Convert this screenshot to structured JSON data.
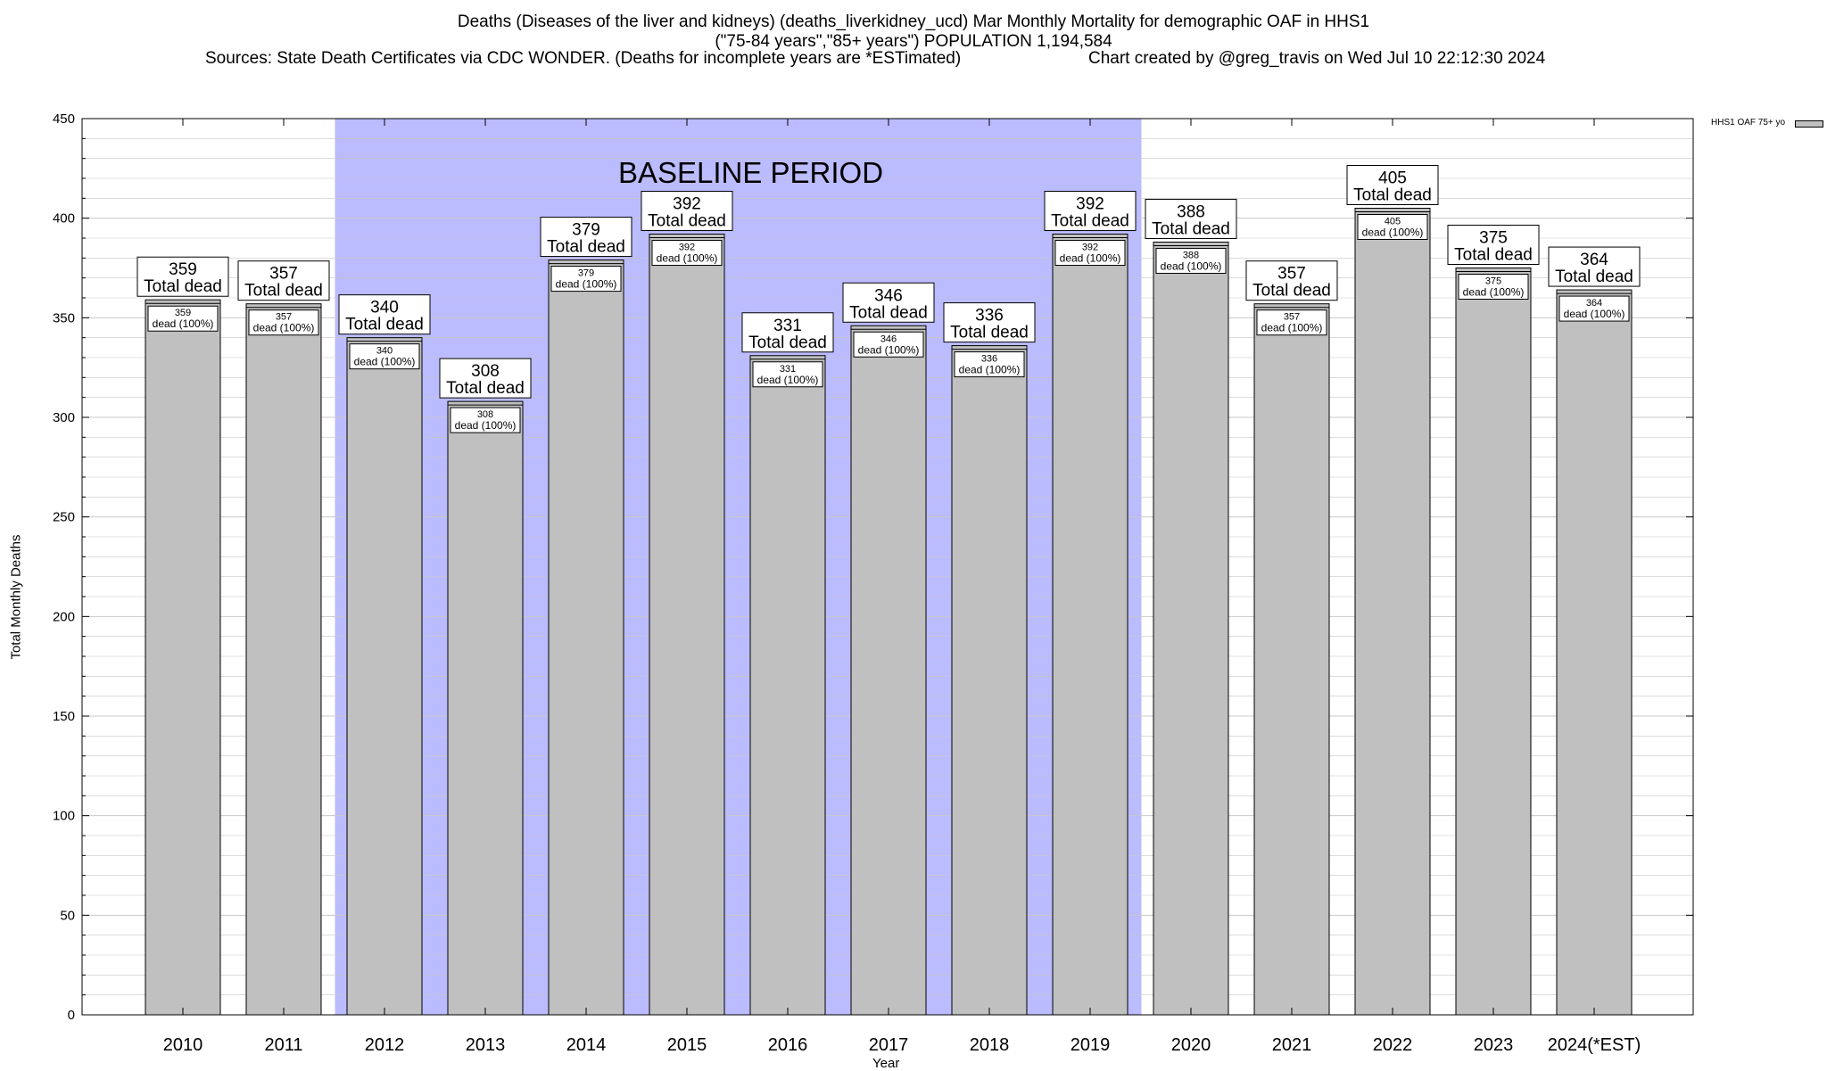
{
  "header": {
    "line1": "Deaths (Diseases of the liver and kidneys) (deaths_liverkidney_ucd) Mar Monthly Mortality for demographic OAF in HHS1",
    "line2": "(\"75-84 years\",\"85+ years\") POPULATION 1,194,584",
    "line3_left": "Sources: State Death Certificates via CDC WONDER. (Deaths for incomplete years are *ESTimated)",
    "line3_right": "Chart created by @greg_travis on Wed Jul 10 22:12:30 2024"
  },
  "legend": {
    "label": "HHS1 OAF 75+ yo"
  },
  "chart_data": {
    "type": "bar",
    "xlabel": "Year",
    "ylabel": "Total Monthly Deaths",
    "ylim": [
      0,
      450
    ],
    "yticks": [
      0,
      50,
      100,
      150,
      200,
      250,
      300,
      350,
      400,
      450
    ],
    "categories": [
      "2010",
      "2011",
      "2012",
      "2013",
      "2014",
      "2015",
      "2016",
      "2017",
      "2018",
      "2019",
      "2020",
      "2021",
      "2022",
      "2023",
      "2024(*EST)"
    ],
    "series": [
      {
        "name": "HHS1 OAF 75+ yo",
        "values": [
          359,
          357,
          340,
          308,
          379,
          392,
          331,
          346,
          336,
          392,
          388,
          357,
          405,
          375,
          364
        ]
      }
    ],
    "total_label": "Total dead",
    "share_label": "dead (100%)",
    "baseline": {
      "label": "BASELINE PERIOD",
      "from": "2012",
      "to": "2019"
    },
    "grid": true,
    "legend_position": "top-right",
    "colors": {
      "bar": "#c0c0c0",
      "baseline": "#bbbbff",
      "grid": "#c8c8c8"
    }
  }
}
